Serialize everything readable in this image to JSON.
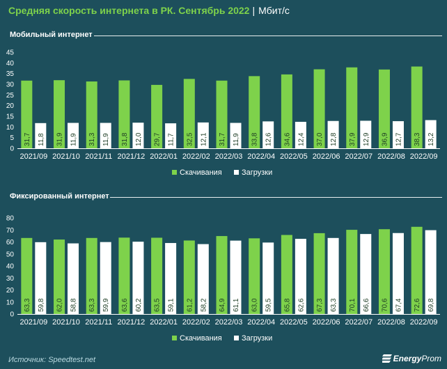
{
  "title": {
    "main": "Средняя скорость интернета в РК. Сентябрь 2022",
    "separator": "|",
    "unit": "Мбит/с"
  },
  "colors": {
    "background": "#1d4f5c",
    "download": "#7ed24b",
    "upload": "#ffffff",
    "title": "#7ed24b"
  },
  "footer": {
    "source": "Источник: Speedtest.net",
    "logo_bold": "Energy",
    "logo_light": "Prom"
  },
  "chart_data": [
    {
      "type": "bar",
      "title": "Мобильный интернет",
      "categories": [
        "2021/09",
        "2021/10",
        "2021/11",
        "2021/12",
        "2022/01",
        "2022/02",
        "2022/03",
        "2022/04",
        "2022/05",
        "2022/06",
        "2022/07",
        "2022/08",
        "2022/09"
      ],
      "series": [
        {
          "name": "Скачивания",
          "values": [
            31.7,
            31.9,
            31.3,
            31.8,
            29.7,
            32.5,
            31.7,
            33.8,
            34.6,
            37.0,
            37.9,
            36.9,
            38.3
          ],
          "labels": [
            "31,7",
            "31,9",
            "31,3",
            "31,8",
            "29,7",
            "32,5",
            "31,7",
            "33,8",
            "34,6",
            "37,0",
            "37,9",
            "36,9",
            "38,3"
          ]
        },
        {
          "name": "Загрузки",
          "values": [
            11.8,
            11.9,
            11.9,
            12.0,
            11.7,
            12.1,
            11.9,
            12.6,
            12.4,
            12.8,
            12.9,
            12.7,
            13.2
          ],
          "labels": [
            "11,8",
            "11,9",
            "11,9",
            "12,0",
            "11,7",
            "12,1",
            "11,9",
            "12,6",
            "12,4",
            "12,8",
            "12,9",
            "12,7",
            "13,2"
          ]
        }
      ],
      "ylim": [
        0,
        45
      ],
      "yticks": [
        "0",
        "5",
        "10",
        "15",
        "20",
        "25",
        "30",
        "35",
        "40",
        "45"
      ],
      "grid": false,
      "legend": "bottom-center"
    },
    {
      "type": "bar",
      "title": "Фиксированный интернет",
      "categories": [
        "2021/09",
        "2021/10",
        "2021/11",
        "2021/12",
        "2022/01",
        "2022/02",
        "2022/03",
        "2022/04",
        "2022/05",
        "2022/06",
        "2022/07",
        "2022/08",
        "2022/09"
      ],
      "series": [
        {
          "name": "Скачивания",
          "values": [
            63.3,
            62.0,
            63.3,
            63.6,
            63.5,
            61.2,
            64.9,
            63.0,
            65.8,
            67.3,
            70.1,
            70.6,
            72.6
          ],
          "labels": [
            "63,3",
            "62,0",
            "63,3",
            "63,6",
            "63,5",
            "61,2",
            "64,9",
            "63,0",
            "65,8",
            "67,3",
            "70,1",
            "70,6",
            "72,6"
          ]
        },
        {
          "name": "Загрузки",
          "values": [
            59.8,
            58.8,
            59.9,
            60.2,
            59.1,
            58.2,
            61.1,
            59.5,
            62.6,
            63.3,
            66.6,
            67.4,
            69.8
          ],
          "labels": [
            "59,8",
            "58,8",
            "59,9",
            "60,2",
            "59,1",
            "58,2",
            "61,1",
            "59,5",
            "62,6",
            "63,3",
            "66,6",
            "67,4",
            "69,8"
          ]
        }
      ],
      "ylim": [
        0,
        80
      ],
      "yticks": [
        "0",
        "10",
        "20",
        "30",
        "40",
        "50",
        "60",
        "70",
        "80"
      ],
      "grid": false,
      "legend": "bottom-center"
    }
  ]
}
